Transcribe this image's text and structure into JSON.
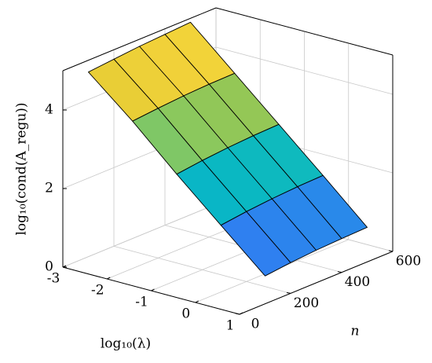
{
  "chart_data": {
    "type": "surface",
    "xlabel": "log₁₀(λ)",
    "ylabel": "n",
    "zlabel": "log₁₀(cond(A_regu))",
    "x": [
      -3,
      -2,
      -1,
      0,
      1
    ],
    "y": [
      100,
      200,
      300,
      400,
      500
    ],
    "z": [
      [
        4.7,
        4.76,
        4.82,
        4.86,
        4.9
      ],
      [
        3.75,
        3.81,
        3.86,
        3.89,
        3.9
      ],
      [
        2.7,
        2.78,
        2.84,
        2.88,
        2.9
      ],
      [
        1.7,
        1.78,
        1.84,
        1.88,
        1.9
      ],
      [
        0.71,
        0.78,
        0.83,
        0.86,
        0.88
      ]
    ],
    "xlim": [
      -3,
      1
    ],
    "xticks": [
      -3,
      -2,
      -1,
      0,
      1
    ],
    "ylim": [
      0,
      600
    ],
    "yticks": [
      0,
      200,
      400,
      600
    ],
    "zlim": [
      0,
      5
    ],
    "zticks": [
      0,
      2,
      4
    ],
    "grid": true,
    "colormap": [
      "#3a5ce8",
      "#2f7ff0",
      "#1aa3dc",
      "#08b8c4",
      "#2cc1a6",
      "#8cc85c",
      "#cdbf2a",
      "#f2d23a",
      "#f9f50e"
    ],
    "edgecolor": "#000000"
  }
}
